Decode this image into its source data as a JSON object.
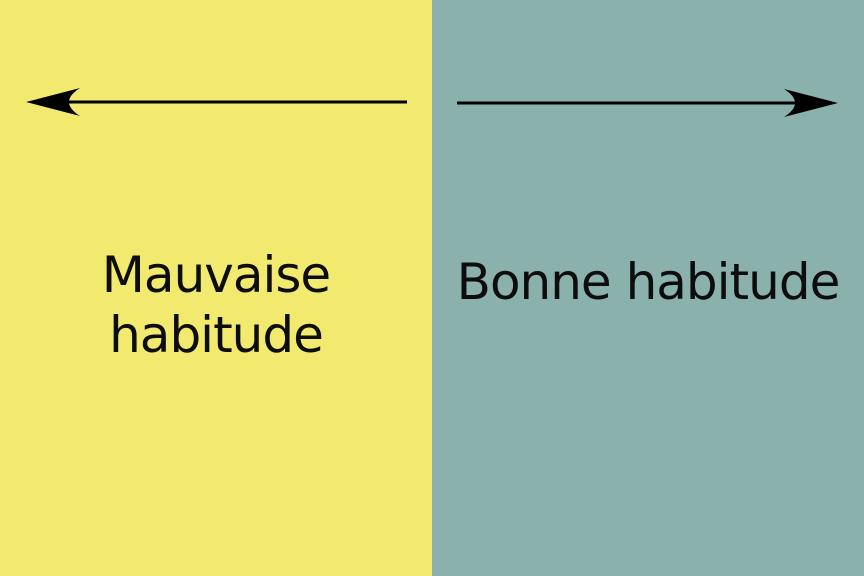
{
  "colors": {
    "left_panel": "#f2ea6f",
    "right_panel": "#8bb1ac",
    "arrow": "#000000",
    "text": "#0d0d0d"
  },
  "left_panel": {
    "arrow_direction": "left",
    "label_line1": "Mauvaise",
    "label_line2": "habitude"
  },
  "right_panel": {
    "arrow_direction": "right",
    "label": "Bonne habitude"
  }
}
